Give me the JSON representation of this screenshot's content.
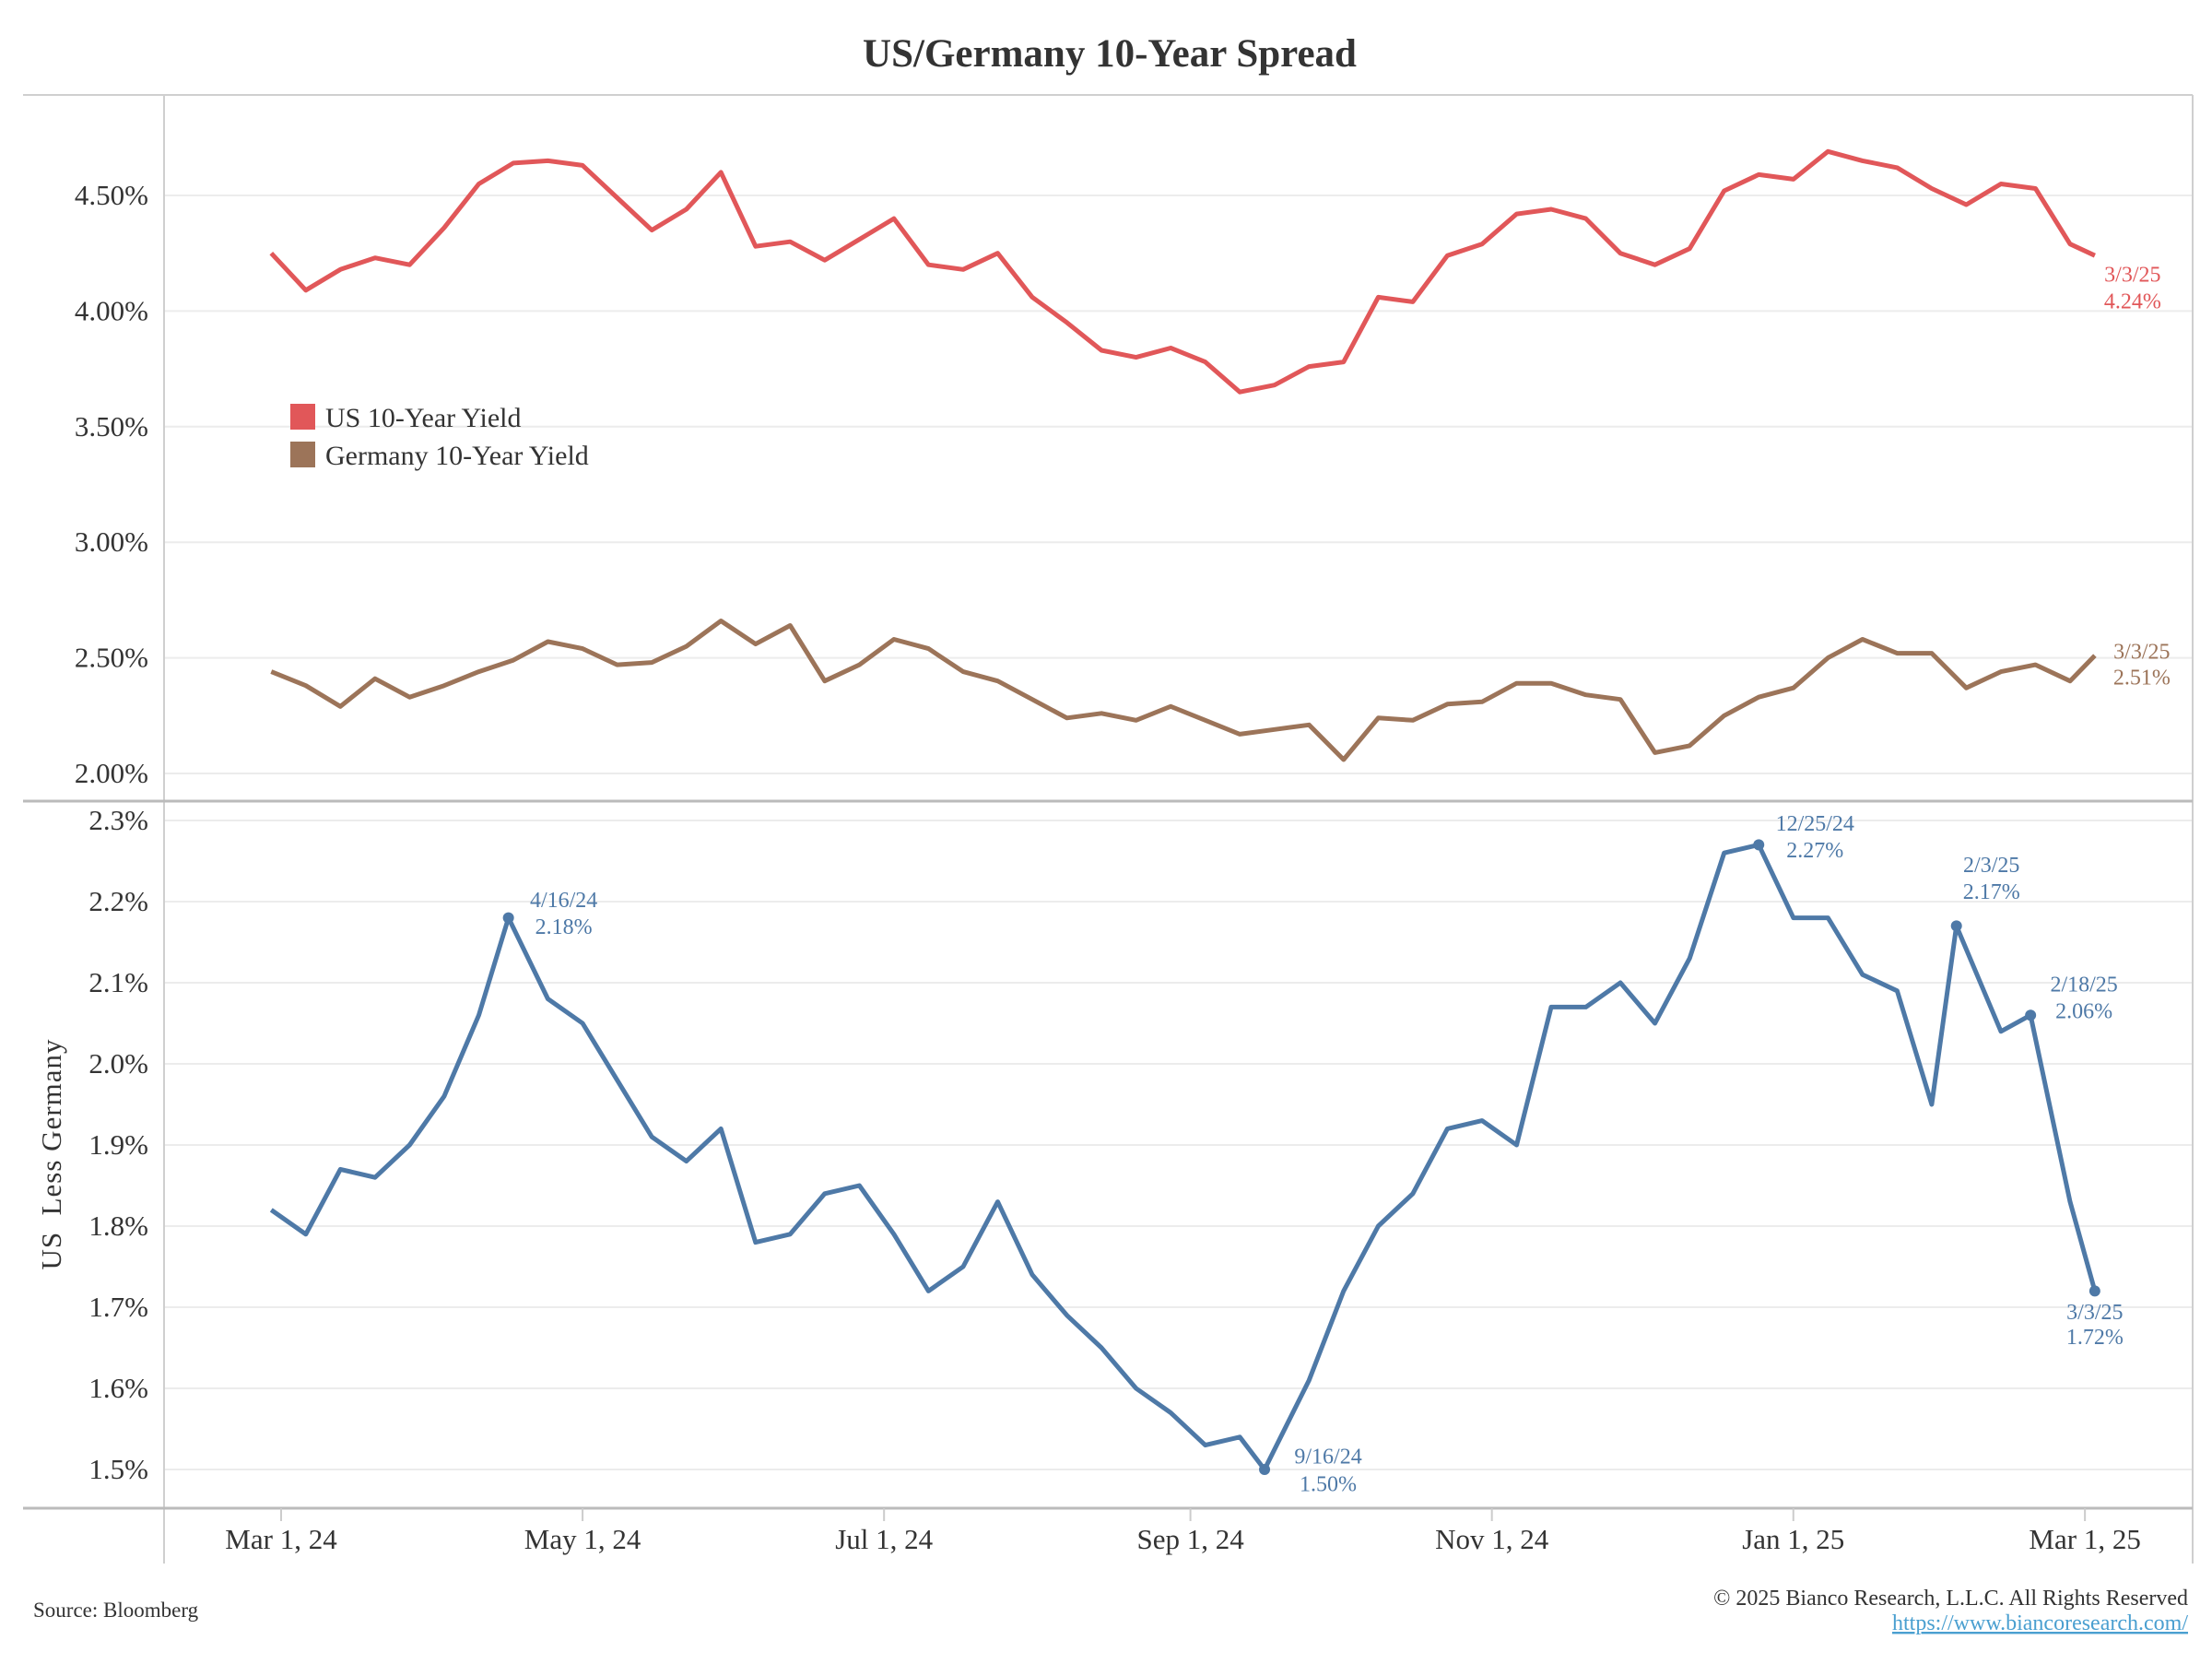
{
  "title": "US/Germany 10-Year Spread",
  "source": "Source: Bloomberg",
  "copyright": "© 2025 Bianco Research, L.L.C. All Rights Reserved",
  "url": "https://www.biancoresearch.com/",
  "colors": {
    "us": "#e15759",
    "germany": "#9c7459",
    "spread": "#4e79a7",
    "link": "#4a9fd0"
  },
  "chart_data": [
    {
      "type": "line",
      "panel": "top",
      "ylabel": "",
      "ylim": [
        1.95,
        4.85
      ],
      "yticks": [
        4.5,
        4.0,
        3.5,
        3.0,
        2.5,
        2.0
      ],
      "ytick_labels": [
        "4.50%",
        "4.00%",
        "3.50%",
        "3.00%",
        "2.50%",
        "2.00%"
      ],
      "legend": {
        "placement": "center-left",
        "entries": [
          "US 10-Year Yield",
          "Germany 10-Year Yield"
        ]
      },
      "dates": [
        "2024-02-28",
        "2024-03-06",
        "2024-03-13",
        "2024-03-20",
        "2024-03-27",
        "2024-04-03",
        "2024-04-10",
        "2024-04-17",
        "2024-04-24",
        "2024-05-01",
        "2024-05-08",
        "2024-05-15",
        "2024-05-22",
        "2024-05-29",
        "2024-06-05",
        "2024-06-12",
        "2024-06-19",
        "2024-06-26",
        "2024-07-03",
        "2024-07-10",
        "2024-07-17",
        "2024-07-24",
        "2024-07-31",
        "2024-08-07",
        "2024-08-14",
        "2024-08-21",
        "2024-08-28",
        "2024-09-04",
        "2024-09-11",
        "2024-09-18",
        "2024-09-25",
        "2024-10-02",
        "2024-10-09",
        "2024-10-16",
        "2024-10-23",
        "2024-10-30",
        "2024-11-06",
        "2024-11-13",
        "2024-11-20",
        "2024-11-27",
        "2024-12-04",
        "2024-12-11",
        "2024-12-18",
        "2024-12-25",
        "2025-01-01",
        "2025-01-08",
        "2025-01-15",
        "2025-01-22",
        "2025-01-29",
        "2025-02-05",
        "2025-02-12",
        "2025-02-19",
        "2025-02-26",
        "2025-03-03"
      ],
      "series": [
        {
          "name": "US 10-Year Yield",
          "values": [
            4.25,
            4.09,
            4.18,
            4.23,
            4.2,
            4.36,
            4.55,
            4.64,
            4.65,
            4.63,
            4.49,
            4.35,
            4.44,
            4.6,
            4.28,
            4.3,
            4.22,
            4.31,
            4.4,
            4.2,
            4.18,
            4.25,
            4.06,
            3.95,
            3.83,
            3.8,
            3.84,
            3.78,
            3.65,
            3.68,
            3.76,
            3.78,
            4.06,
            4.04,
            4.24,
            4.29,
            4.42,
            4.44,
            4.4,
            4.25,
            4.2,
            4.27,
            4.52,
            4.59,
            4.57,
            4.69,
            4.65,
            4.62,
            4.53,
            4.46,
            4.55,
            4.53,
            4.29,
            4.24
          ],
          "end_label": {
            "date": "3/3/25",
            "value": "4.24%"
          }
        },
        {
          "name": "Germany 10-Year Yield",
          "values": [
            2.44,
            2.38,
            2.29,
            2.41,
            2.33,
            2.38,
            2.44,
            2.49,
            2.57,
            2.54,
            2.47,
            2.48,
            2.55,
            2.66,
            2.56,
            2.64,
            2.4,
            2.47,
            2.58,
            2.54,
            2.44,
            2.4,
            2.32,
            2.24,
            2.26,
            2.23,
            2.29,
            2.23,
            2.17,
            2.19,
            2.21,
            2.06,
            2.24,
            2.23,
            2.3,
            2.31,
            2.39,
            2.39,
            2.34,
            2.32,
            2.09,
            2.12,
            2.25,
            2.33,
            2.37,
            2.5,
            2.58,
            2.52,
            2.52,
            2.37,
            2.44,
            2.47,
            2.4,
            2.51
          ],
          "end_label": {
            "date": "3/3/25",
            "value": "2.51%"
          }
        }
      ]
    },
    {
      "type": "line",
      "panel": "bottom",
      "ylabel": "US  Less Germany",
      "ylim": [
        1.45,
        2.32
      ],
      "yticks": [
        2.3,
        2.2,
        2.1,
        2.0,
        1.9,
        1.8,
        1.7,
        1.6,
        1.5
      ],
      "ytick_labels": [
        "2.3%",
        "2.2%",
        "2.1%",
        "2.0%",
        "1.9%",
        "1.8%",
        "1.7%",
        "1.6%",
        "1.5%"
      ],
      "xticks": [
        "2024-03-01",
        "2024-05-01",
        "2024-07-01",
        "2024-09-01",
        "2024-11-01",
        "2025-01-01",
        "2025-03-01"
      ],
      "xtick_labels": [
        "Mar 1, 24",
        "May 1, 24",
        "Jul 1, 24",
        "Sep 1, 24",
        "Nov 1, 24",
        "Jan 1, 25",
        "Mar 1, 25"
      ],
      "dates": [
        "2024-02-28",
        "2024-03-06",
        "2024-03-13",
        "2024-03-20",
        "2024-03-27",
        "2024-04-03",
        "2024-04-10",
        "2024-04-16",
        "2024-04-24",
        "2024-05-01",
        "2024-05-08",
        "2024-05-15",
        "2024-05-22",
        "2024-05-29",
        "2024-06-05",
        "2024-06-12",
        "2024-06-19",
        "2024-06-26",
        "2024-07-03",
        "2024-07-10",
        "2024-07-17",
        "2024-07-24",
        "2024-07-31",
        "2024-08-07",
        "2024-08-14",
        "2024-08-21",
        "2024-08-28",
        "2024-09-04",
        "2024-09-11",
        "2024-09-16",
        "2024-09-25",
        "2024-10-02",
        "2024-10-09",
        "2024-10-16",
        "2024-10-23",
        "2024-10-30",
        "2024-11-06",
        "2024-11-13",
        "2024-11-20",
        "2024-11-27",
        "2024-12-04",
        "2024-12-11",
        "2024-12-18",
        "2024-12-25",
        "2025-01-01",
        "2025-01-08",
        "2025-01-15",
        "2025-01-22",
        "2025-01-29",
        "2025-02-03",
        "2025-02-12",
        "2025-02-18",
        "2025-02-26",
        "2025-03-03"
      ],
      "series": [
        {
          "name": "US Less Germany",
          "values": [
            1.82,
            1.79,
            1.87,
            1.86,
            1.9,
            1.96,
            2.06,
            2.18,
            2.08,
            2.05,
            1.98,
            1.91,
            1.88,
            1.92,
            1.78,
            1.79,
            1.84,
            1.85,
            1.79,
            1.72,
            1.75,
            1.83,
            1.74,
            1.69,
            1.65,
            1.6,
            1.57,
            1.53,
            1.54,
            1.5,
            1.61,
            1.72,
            1.8,
            1.84,
            1.92,
            1.93,
            1.9,
            2.07,
            2.07,
            2.1,
            2.05,
            2.13,
            2.26,
            2.27,
            2.18,
            2.18,
            2.11,
            2.09,
            1.95,
            2.17,
            2.04,
            2.06,
            1.83,
            1.72
          ]
        }
      ],
      "annotations": [
        {
          "date": "2024-04-16",
          "value": 2.18,
          "label_date": "4/16/24",
          "label_value": "2.18%"
        },
        {
          "date": "2024-09-16",
          "value": 1.5,
          "label_date": "9/16/24",
          "label_value": "1.50%"
        },
        {
          "date": "2024-12-25",
          "value": 2.27,
          "label_date": "12/25/24",
          "label_value": "2.27%"
        },
        {
          "date": "2025-02-03",
          "value": 2.17,
          "label_date": "2/3/25",
          "label_value": "2.17%"
        },
        {
          "date": "2025-02-18",
          "value": 2.06,
          "label_date": "2/18/25",
          "label_value": "2.06%"
        },
        {
          "date": "2025-03-03",
          "value": 1.72,
          "label_date": "3/3/25",
          "label_value": "1.72%"
        }
      ]
    }
  ]
}
